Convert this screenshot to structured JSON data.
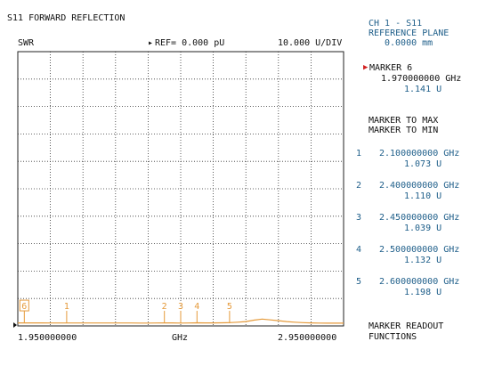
{
  "header": {
    "title": "S11 FORWARD REFLECTION",
    "format": "SWR",
    "ref": "REF= 0.000 pU",
    "scale": "10.000 U/DIV"
  },
  "softkeys": {
    "ch_line1": "CH 1 - S11",
    "ch_line2": "REFERENCE PLANE",
    "ch_line3": "0.0000 mm",
    "active_marker_label": "MARKER 6",
    "active_marker_freq": "1.970000000 GHz",
    "active_marker_value": "1.141 U",
    "marker_to_max": "MARKER TO MAX",
    "marker_to_min": "MARKER TO MIN",
    "markers": [
      {
        "num": "1",
        "freq": "2.100000000 GHz",
        "value": "1.073 U"
      },
      {
        "num": "2",
        "freq": "2.400000000 GHz",
        "value": "1.110 U"
      },
      {
        "num": "3",
        "freq": "2.450000000 GHz",
        "value": "1.039 U"
      },
      {
        "num": "4",
        "freq": "2.500000000 GHz",
        "value": "1.132 U"
      },
      {
        "num": "5",
        "freq": "2.600000000 GHz",
        "value": "1.198 U"
      }
    ],
    "readout_line1": "MARKER READOUT",
    "readout_line2": "FUNCTIONS"
  },
  "colors": {
    "trace": "#e59a3a",
    "grid": "#333333",
    "softkey_text": "#1f5f8a",
    "marker_text": "#d98a1e",
    "active_arrow": "#d21f1f"
  },
  "chart_data": {
    "type": "line",
    "title": "S11 FORWARD REFLECTION",
    "xlabel": "GHz",
    "ylabel": "SWR",
    "x_start_label": "1.950000000",
    "x_stop_label": "2.950000000",
    "xlim": [
      1.95,
      2.95
    ],
    "ylim": [
      0,
      100
    ],
    "grid": true,
    "series": [
      {
        "x": [
          1.95,
          1.975,
          2.0,
          2.025,
          2.05,
          2.075,
          2.1,
          2.125,
          2.15,
          2.175,
          2.2,
          2.225,
          2.25,
          2.275,
          2.3,
          2.325,
          2.35,
          2.375,
          2.4,
          2.425,
          2.45,
          2.475,
          2.5,
          2.525,
          2.55,
          2.575,
          2.6,
          2.625,
          2.65,
          2.675,
          2.7,
          2.725,
          2.75,
          2.775,
          2.8,
          2.825,
          2.85,
          2.875,
          2.9,
          2.925,
          2.95
        ],
        "y": [
          1.1,
          1.11,
          1.12,
          1.1,
          1.08,
          1.08,
          1.07,
          1.06,
          1.06,
          1.06,
          1.06,
          1.06,
          1.06,
          1.06,
          1.07,
          1.05,
          1.04,
          1.08,
          1.11,
          1.09,
          1.04,
          1.08,
          1.13,
          1.12,
          1.12,
          1.15,
          1.2,
          1.35,
          1.6,
          2.1,
          2.5,
          2.2,
          1.9,
          1.6,
          1.35,
          1.2,
          1.1,
          1.05,
          1.02,
          1.02,
          1.02
        ]
      }
    ],
    "markers": [
      {
        "label": "6",
        "x": 1.97
      },
      {
        "label": "1",
        "x": 2.1
      },
      {
        "label": "2",
        "x": 2.4
      },
      {
        "label": "3",
        "x": 2.45
      },
      {
        "label": "4",
        "x": 2.5
      },
      {
        "label": "5",
        "x": 2.6
      }
    ]
  }
}
